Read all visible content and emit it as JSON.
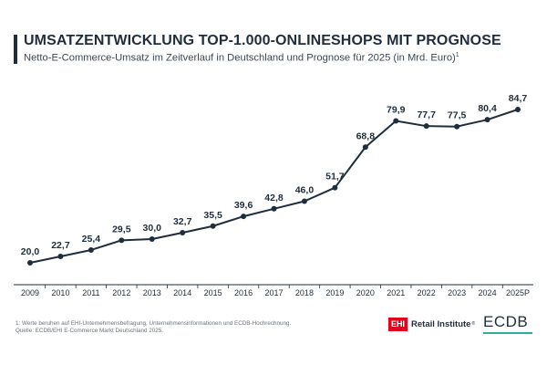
{
  "header": {
    "title": "UMSATZENTWICKLUNG TOP-1.000-ONLINESHOPS MIT PROGNOSE",
    "subtitle": "Netto-E-Commerce-Umsatz im Zeitverlauf in Deutschland und Prognose für 2025 (in Mrd. Euro)",
    "subtitle_sup": "1"
  },
  "chart_data": {
    "type": "line",
    "title": "UMSATZENTWICKLUNG TOP-1.000-ONLINESHOPS MIT PROGNOSE",
    "xlabel": "",
    "ylabel": "",
    "categories": [
      "2009",
      "2010",
      "2011",
      "2012",
      "2013",
      "2014",
      "2015",
      "2016",
      "2017",
      "2018",
      "2019",
      "2020",
      "2021",
      "2022",
      "2023",
      "2024",
      "2025P"
    ],
    "series": [
      {
        "values": [
          20.0,
          22.7,
          25.4,
          29.5,
          30.0,
          32.7,
          35.5,
          39.6,
          42.8,
          46.0,
          51.7,
          68.8,
          79.9,
          77.7,
          77.5,
          80.4,
          84.7
        ]
      }
    ],
    "data_labels": [
      "20,0",
      "22,7",
      "25,4",
      "29,5",
      "30,0",
      "32,7",
      "35,5",
      "39,6",
      "42,8",
      "46,0",
      "51,7",
      "68,8",
      "79,9",
      "77,7",
      "77,5",
      "80,4",
      "84,7"
    ],
    "ylim": [
      20,
      84.7
    ],
    "grid": false,
    "legend": "none",
    "line_color": "#1f2d3d"
  },
  "footer": {
    "note": "1: Werte beruhen auf EHI-Unternehmensbefragung, Unternehmensinformationen und ECDB-Hochrechnung.",
    "source": "Quelle: ECDB/EHI E-Commerce Markt Deutschland 2025."
  },
  "logos": {
    "ehi_box": "EHI",
    "ehi_text": "Retail Institute",
    "ehi_reg": "®",
    "ecdb": "ECDB",
    "ehi_color": "#e3001b",
    "ecdb_accent": "#2fae9e"
  }
}
